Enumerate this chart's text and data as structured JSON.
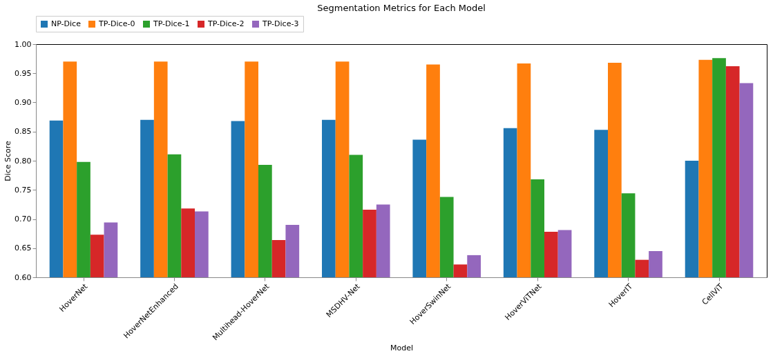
{
  "chart_data": {
    "type": "bar",
    "title": "Segmentation Metrics for Each Model",
    "xlabel": "Model",
    "ylabel": "Dice Score",
    "categories": [
      "HoverNet",
      "HoverNetEnhanced",
      "Multihead-HoverNet",
      "MSDHV-Net",
      "HoverSwinNet",
      "HoverViTNet",
      "HoverIT",
      "CellViT"
    ],
    "series": [
      {
        "name": "NP-Dice",
        "color": "#1f77b4",
        "values": [
          0.869,
          0.87,
          0.868,
          0.87,
          0.836,
          0.856,
          0.853,
          0.8
        ]
      },
      {
        "name": "TP-Dice-0",
        "color": "#ff7f0e",
        "values": [
          0.97,
          0.97,
          0.97,
          0.97,
          0.965,
          0.967,
          0.968,
          0.973
        ]
      },
      {
        "name": "TP-Dice-1",
        "color": "#2ca02c",
        "values": [
          0.798,
          0.811,
          0.793,
          0.81,
          0.738,
          0.768,
          0.744,
          0.976
        ]
      },
      {
        "name": "TP-Dice-2",
        "color": "#d62728",
        "values": [
          0.673,
          0.718,
          0.664,
          0.716,
          0.622,
          0.678,
          0.63,
          0.962
        ]
      },
      {
        "name": "TP-Dice-3",
        "color": "#9467bd",
        "values": [
          0.694,
          0.713,
          0.69,
          0.725,
          0.638,
          0.681,
          0.645,
          0.933
        ]
      }
    ],
    "ylim": [
      0.6,
      1.0
    ],
    "yticks": [
      {
        "value": 0.6,
        "label": "0.60"
      },
      {
        "value": 0.65,
        "label": "0.65"
      },
      {
        "value": 0.7,
        "label": "0.70"
      },
      {
        "value": 0.75,
        "label": "0.75"
      },
      {
        "value": 0.8,
        "label": "0.80"
      },
      {
        "value": 0.85,
        "label": "0.85"
      },
      {
        "value": 0.9,
        "label": "0.90"
      },
      {
        "value": 0.95,
        "label": "0.95"
      },
      {
        "value": 1.0,
        "label": "1.00"
      }
    ],
    "legend": "top",
    "grid": false
  }
}
